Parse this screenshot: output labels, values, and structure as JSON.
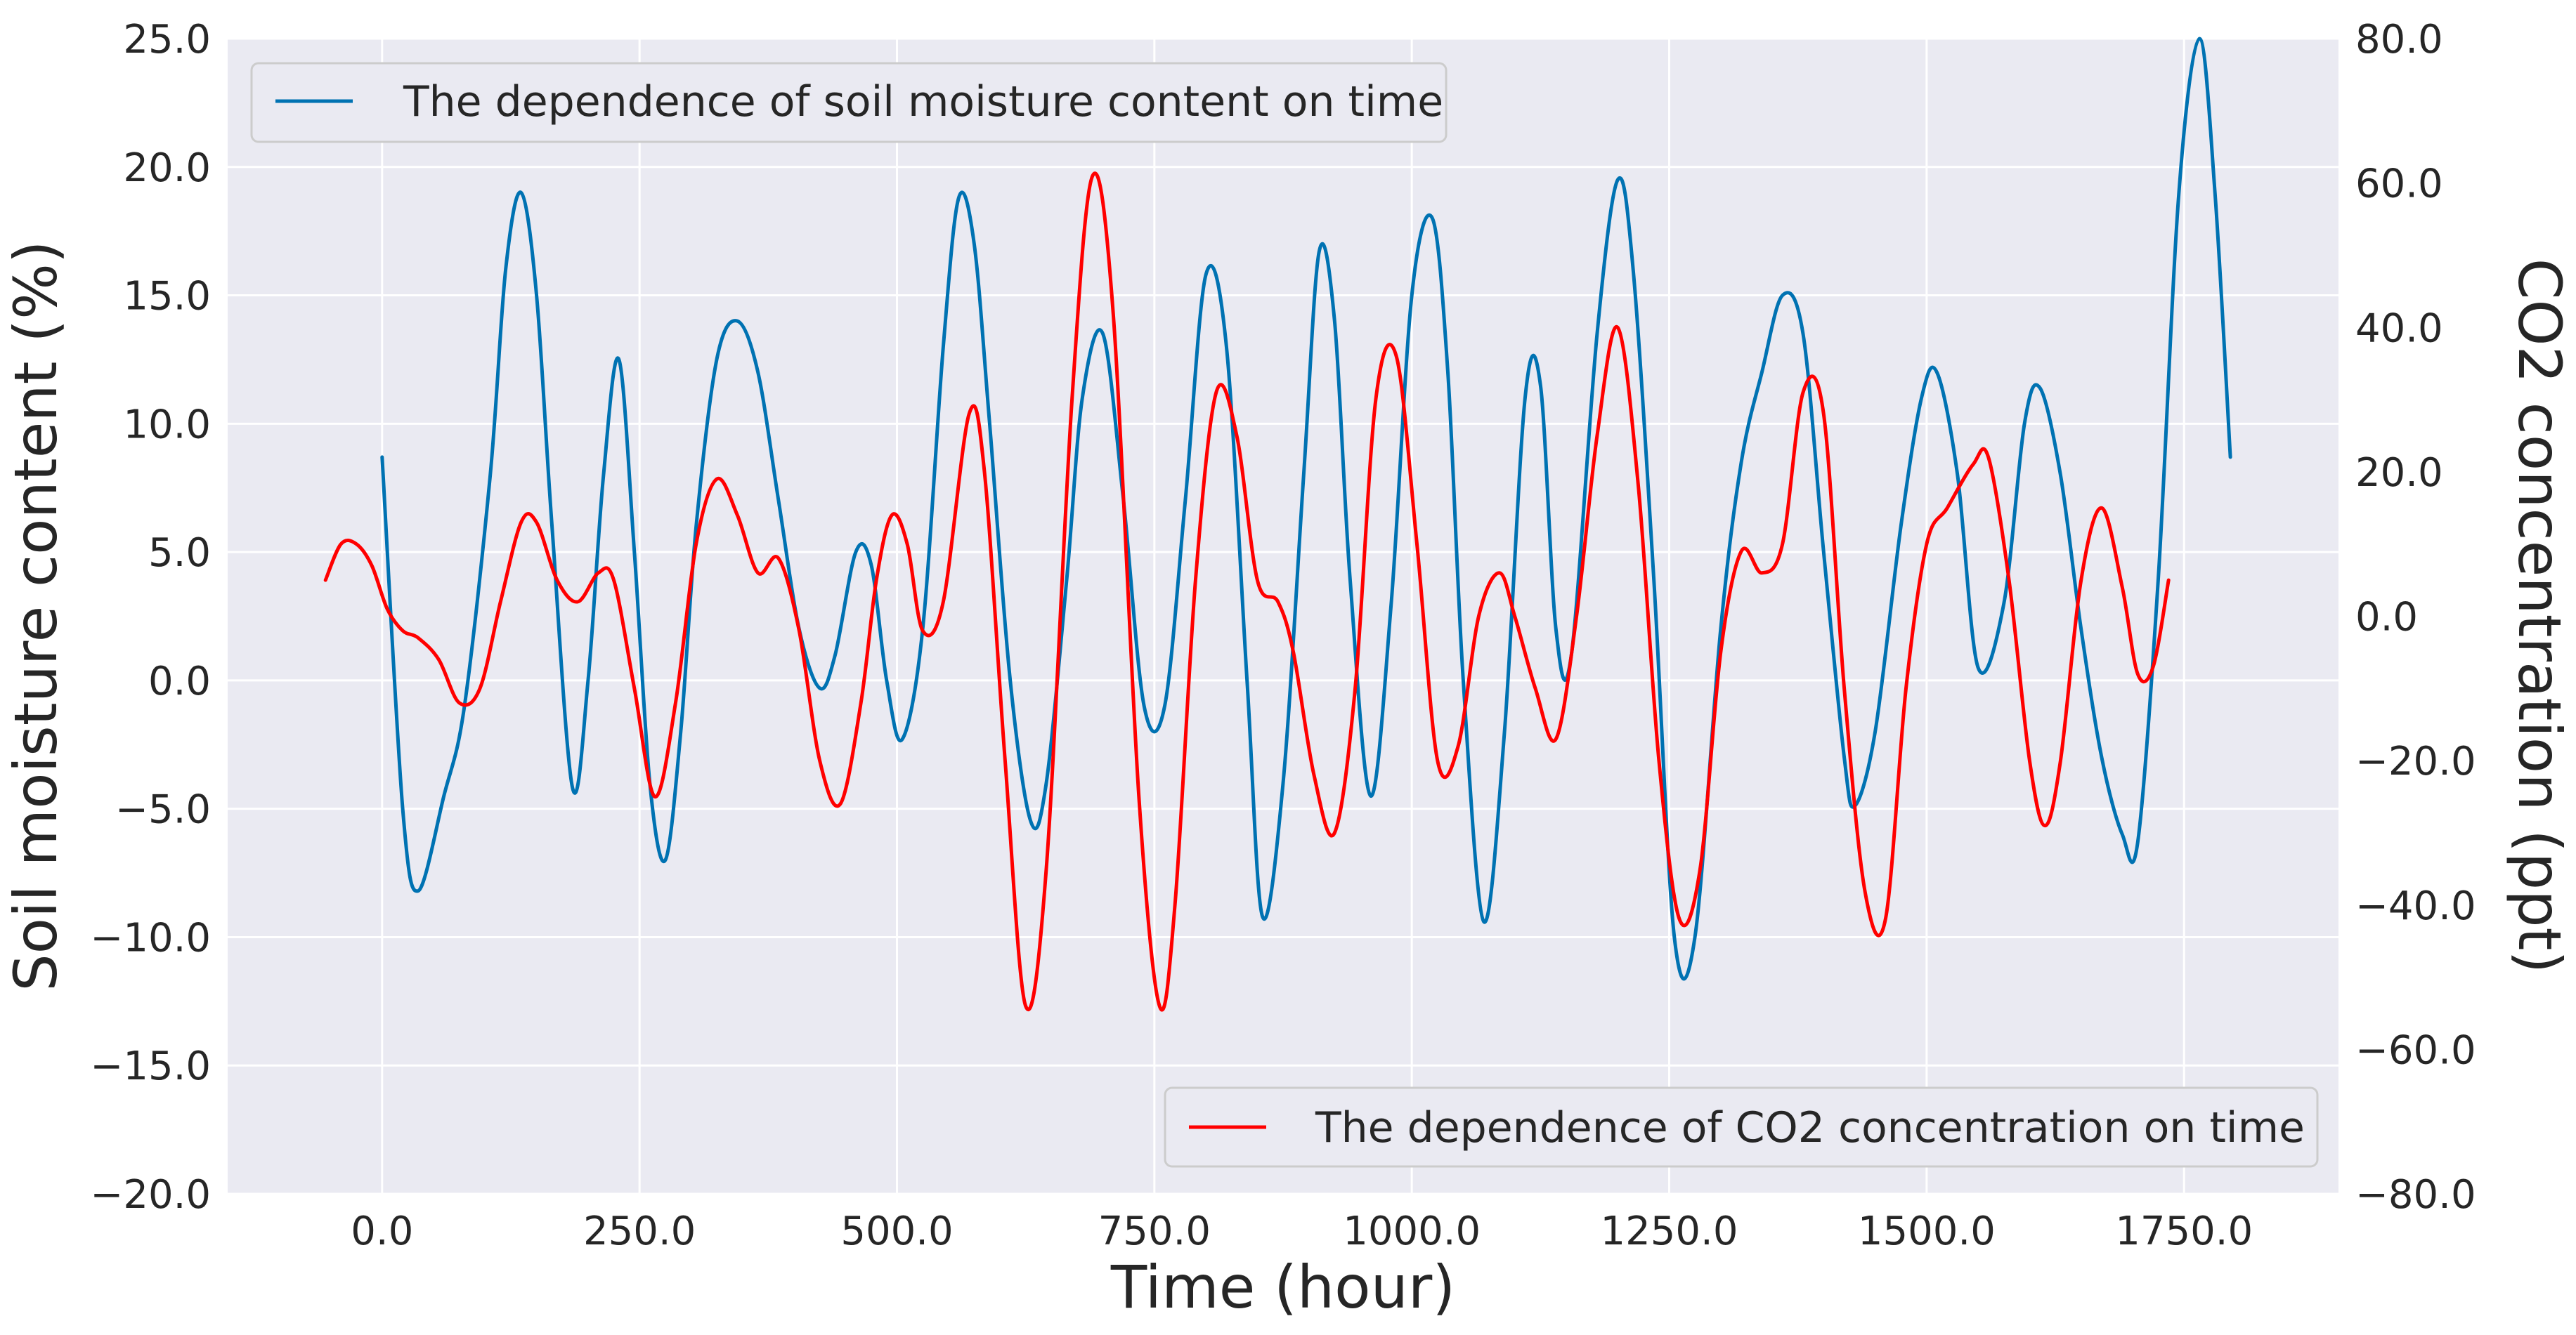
{
  "chart_data": {
    "type": "line",
    "title": "",
    "xlabel": "Time (hour)",
    "ylabel": "Soil moisture content (%)",
    "y2label": "CO2 concentration (ppt)",
    "xlim": [
      -150,
      1900
    ],
    "ylim": [
      -20,
      25
    ],
    "y2lim": [
      -80,
      80
    ],
    "grid": true,
    "x_ticks": [
      "0.0",
      "250.0",
      "500.0",
      "750.0",
      "1000.0",
      "1250.0",
      "1500.0",
      "1750.0"
    ],
    "y_ticks": [
      "−20.0",
      "−15.0",
      "−10.0",
      "−5.0",
      "0.0",
      "5.0",
      "10.0",
      "15.0",
      "20.0",
      "25.0"
    ],
    "y2_ticks": [
      "−80.0",
      "−60.0",
      "−40.0",
      "−20.0",
      "0.0",
      "20.0",
      "40.0",
      "60.0",
      "80.0"
    ],
    "legends": [
      {
        "label": "The dependence of soil moisture content on time",
        "placement": "upper left",
        "color": "#0072B2"
      },
      {
        "label": "The dependence of CO2 concentration on time",
        "placement": "lower right",
        "color": "#FF0000"
      }
    ],
    "series": [
      {
        "name": "The dependence of soil moisture content on time",
        "axis": "left",
        "color": "#0072B2",
        "x": [
          0,
          20,
          35,
          60,
          80,
          105,
          120,
          135,
          150,
          165,
          185,
          200,
          215,
          230,
          245,
          260,
          275,
          290,
          305,
          325,
          345,
          365,
          385,
          405,
          425,
          440,
          460,
          475,
          490,
          505,
          525,
          545,
          560,
          575,
          590,
          610,
          630,
          645,
          665,
          680,
          700,
          720,
          740,
          760,
          780,
          800,
          820,
          840,
          855,
          875,
          895,
          910,
          925,
          940,
          960,
          980,
          1000,
          1020,
          1035,
          1050,
          1070,
          1090,
          1110,
          1125,
          1140,
          1155,
          1180,
          1200,
          1215,
          1235,
          1255,
          1275,
          1300,
          1320,
          1340,
          1360,
          1380,
          1400,
          1420,
          1430,
          1450,
          1475,
          1495,
          1510,
          1530,
          1550,
          1575,
          1595,
          1610,
          1630,
          1650,
          1670,
          1690,
          1705,
          1725,
          1745,
          1765,
          1780,
          1795
        ],
        "y": [
          8.7,
          -5.0,
          -8.2,
          -4.5,
          -1.0,
          8.0,
          16.0,
          19.0,
          15.0,
          6.0,
          -4.2,
          0.0,
          8.0,
          12.5,
          5.0,
          -4.0,
          -7.0,
          -2.0,
          6.0,
          12.5,
          14.0,
          12.0,
          7.0,
          2.0,
          -0.3,
          1.0,
          5.0,
          4.5,
          0.0,
          -2.3,
          2.0,
          13.0,
          18.8,
          17.0,
          10.0,
          0.0,
          -5.5,
          -4.0,
          4.0,
          11.0,
          13.5,
          7.0,
          -1.0,
          -1.0,
          7.0,
          15.8,
          13.0,
          0.0,
          -9.2,
          -4.0,
          8.0,
          16.7,
          14.0,
          4.0,
          -4.5,
          3.0,
          15.0,
          18.0,
          12.0,
          0.0,
          -9.4,
          -2.0,
          11.0,
          11.5,
          2.0,
          1.0,
          13.5,
          19.5,
          16.0,
          4.0,
          -10.0,
          -10.0,
          2.0,
          8.5,
          12.0,
          15.0,
          13.5,
          5.0,
          -3.0,
          -4.9,
          -2.0,
          6.0,
          11.0,
          12.0,
          8.0,
          0.5,
          3.0,
          10.0,
          11.4,
          8.0,
          2.0,
          -3.0,
          -6.0,
          -6.3,
          4.0,
          19.0,
          25.0,
          19.0,
          8.7
        ]
      },
      {
        "name": "The dependence of CO2 concentration on time",
        "axis": "right",
        "color": "#FF0000",
        "x": [
          -55,
          -40,
          -25,
          -10,
          5,
          20,
          35,
          55,
          75,
          95,
          115,
          135,
          150,
          170,
          190,
          210,
          225,
          245,
          265,
          285,
          305,
          325,
          345,
          365,
          385,
          405,
          425,
          445,
          465,
          480,
          495,
          510,
          525,
          545,
          570,
          585,
          605,
          625,
          645,
          670,
          690,
          710,
          735,
          755,
          770,
          790,
          810,
          830,
          850,
          870,
          885,
          905,
          925,
          945,
          965,
          985,
          1005,
          1025,
          1045,
          1065,
          1085,
          1100,
          1120,
          1140,
          1160,
          1180,
          1200,
          1220,
          1240,
          1260,
          1280,
          1300,
          1320,
          1340,
          1360,
          1380,
          1400,
          1420,
          1440,
          1460,
          1480,
          1500,
          1520,
          1545,
          1560,
          1580,
          1600,
          1615,
          1630,
          1650,
          1670,
          1690,
          1705,
          1720,
          1735
        ],
        "y": [
          5.0,
          10.0,
          10.0,
          7.0,
          1.0,
          -2.0,
          -3.0,
          -6.0,
          -12.0,
          -10.0,
          2.0,
          13.0,
          13.0,
          5.0,
          2.0,
          6.0,
          5.0,
          -10.0,
          -25.0,
          -12.0,
          10.0,
          19.0,
          14.0,
          6.0,
          8.0,
          -2.0,
          -20.0,
          -26.0,
          -12.0,
          5.0,
          14.0,
          10.0,
          -2.0,
          2.0,
          28.0,
          20.0,
          -20.0,
          -54.0,
          -35.0,
          30.0,
          61.0,
          42.0,
          -25.0,
          -54.0,
          -40.0,
          5.0,
          31.0,
          25.0,
          5.0,
          2.0,
          -5.0,
          -22.0,
          -30.0,
          -10.0,
          30.0,
          36.0,
          10.0,
          -20.0,
          -18.0,
          0.0,
          6.0,
          0.0,
          -10.0,
          -17.0,
          0.0,
          25.0,
          40.0,
          18.0,
          -20.0,
          -42.0,
          -35.0,
          -5.0,
          9.0,
          6.0,
          10.0,
          31.0,
          28.0,
          -10.0,
          -38.0,
          -42.0,
          -10.0,
          10.0,
          15.0,
          21.0,
          22.0,
          5.0,
          -20.0,
          -29.0,
          -20.0,
          5.0,
          15.0,
          4.0,
          -8.0,
          -7.0,
          5.0
        ]
      }
    ]
  }
}
